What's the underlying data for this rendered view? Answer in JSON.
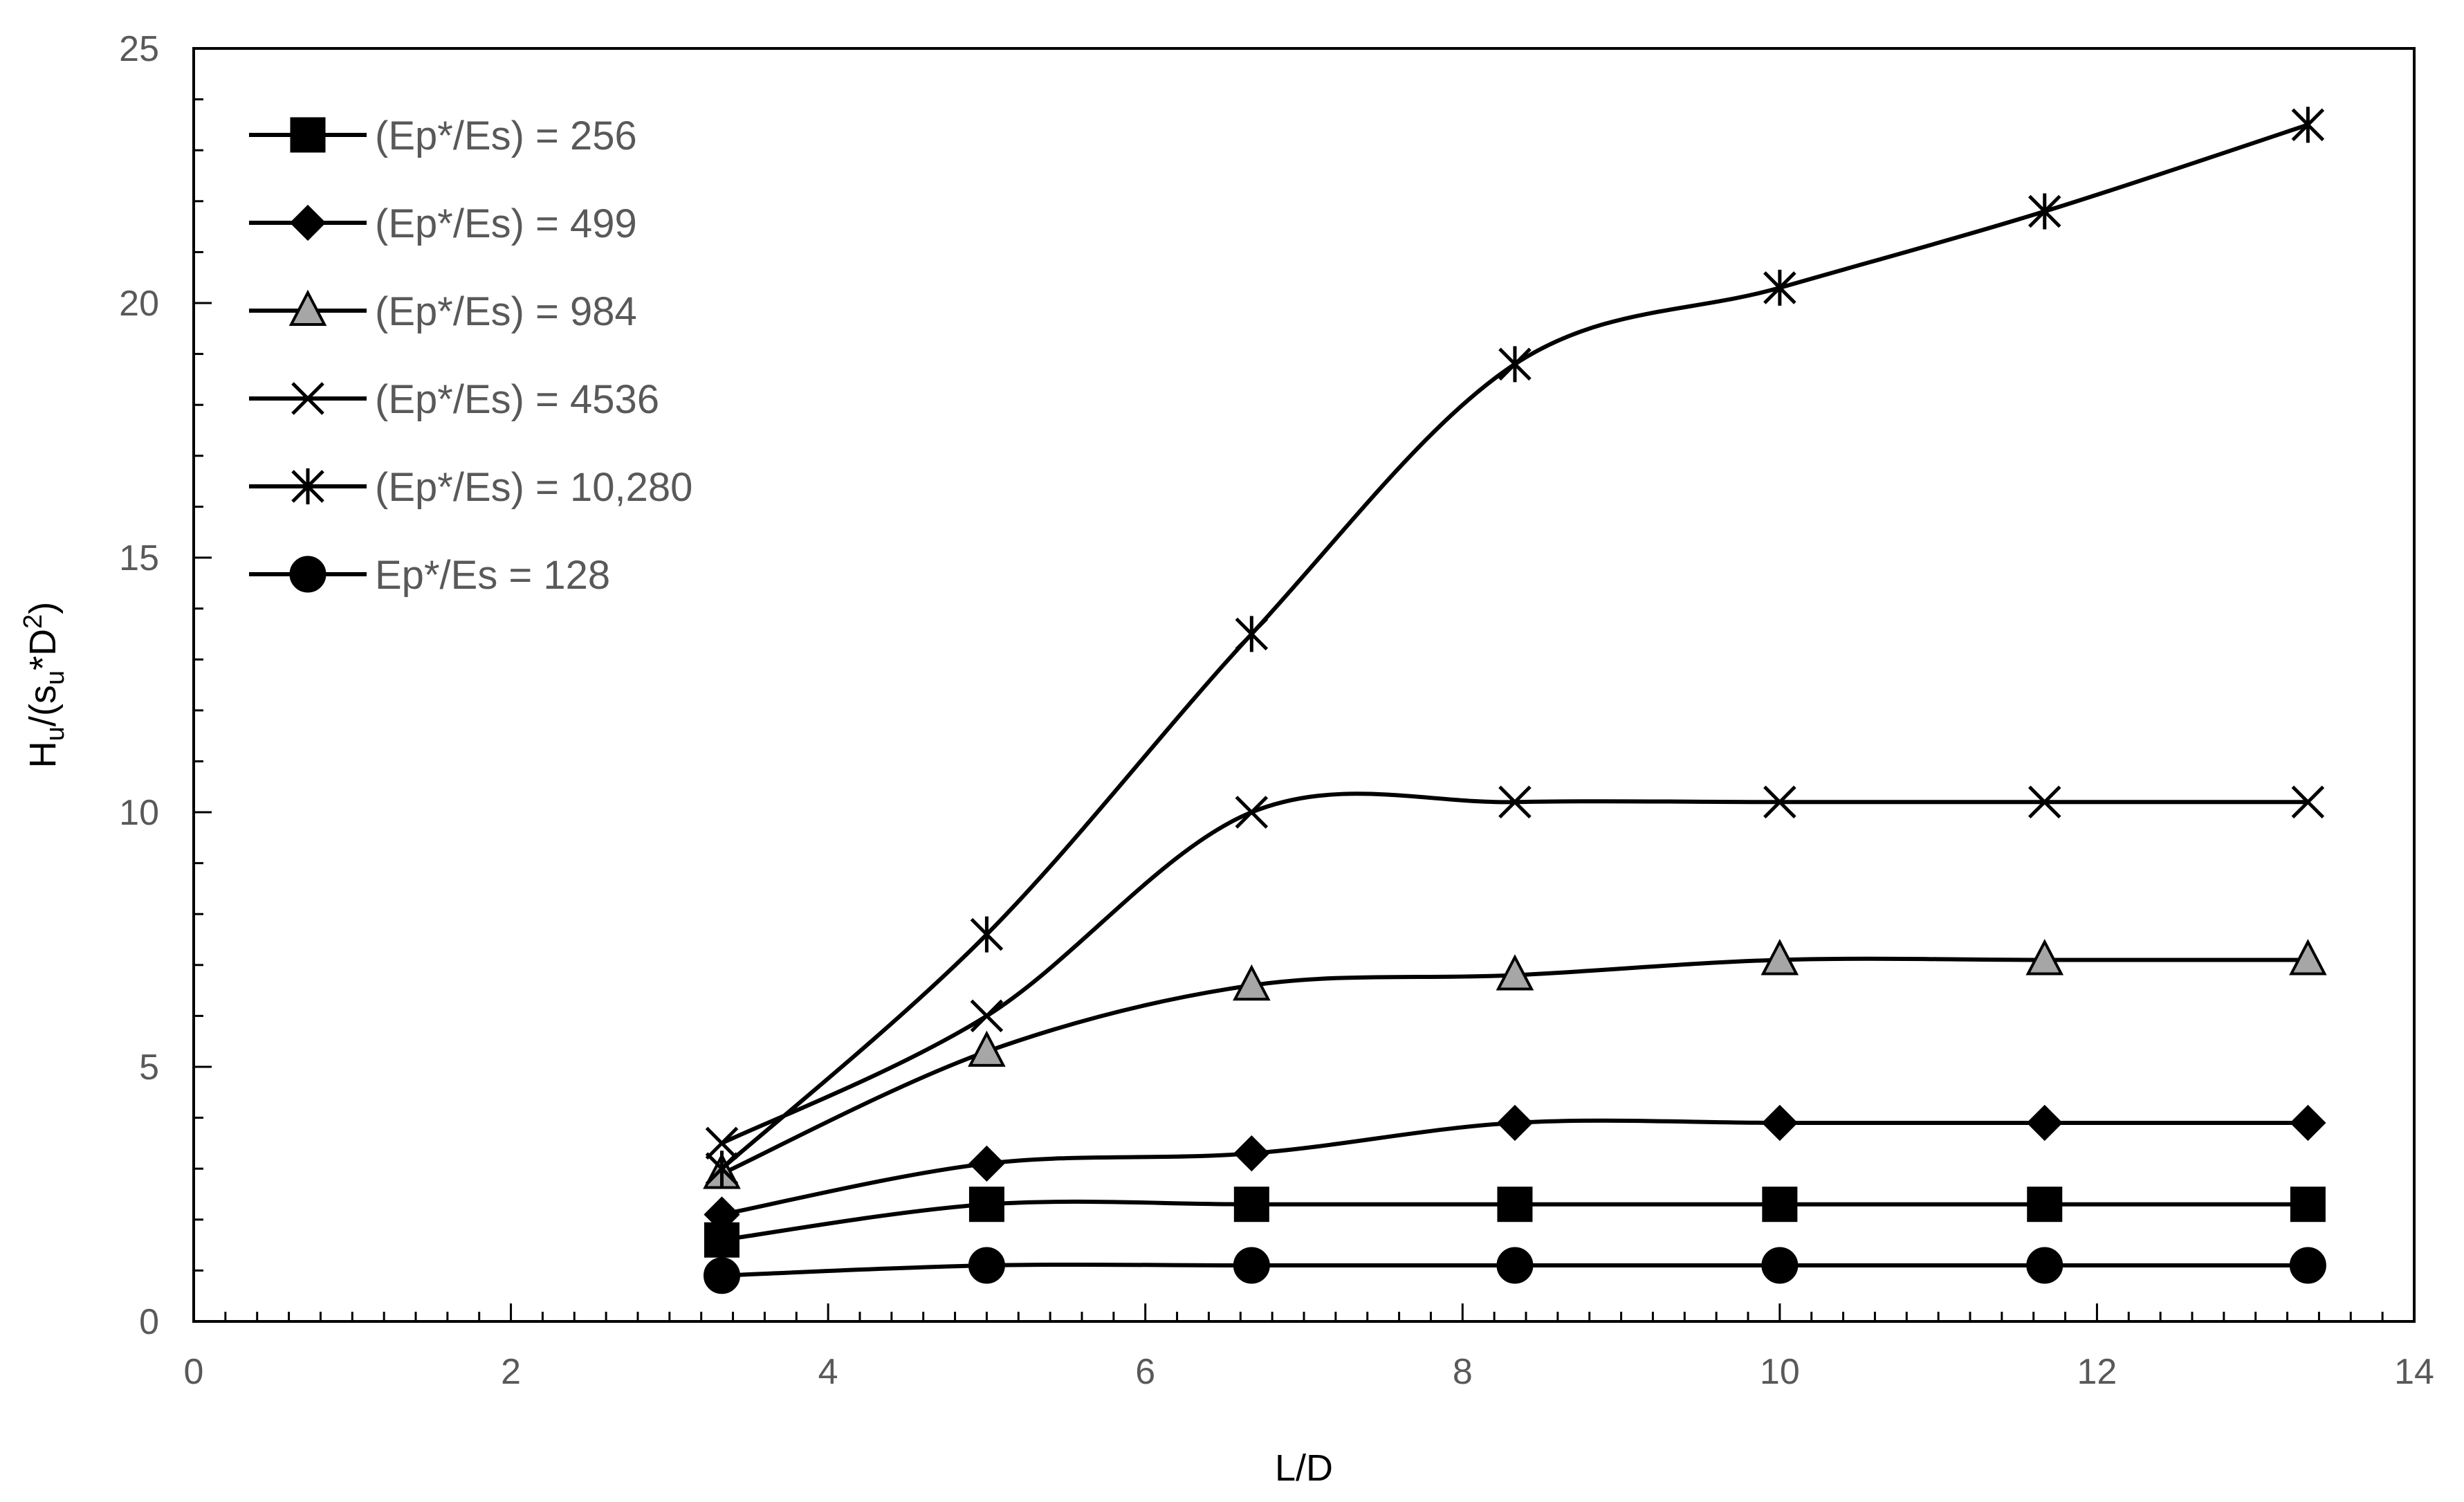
{
  "chart_data": {
    "type": "line",
    "title": "",
    "xlabel": "L/D",
    "ylabel": {
      "H": "H",
      "u1": "u",
      "mid": "/(s",
      "u2": "u",
      "star": "*D",
      "sup": "2",
      "end": ")"
    },
    "xlim": [
      0,
      14
    ],
    "ylim": [
      0,
      25
    ],
    "xticks": [
      "0",
      "2",
      "4",
      "6",
      "8",
      "10",
      "12",
      "14"
    ],
    "yticks": [
      "0",
      "5",
      "10",
      "15",
      "20",
      "25"
    ],
    "grid": false,
    "legend_position": "top-left",
    "x": [
      3.33,
      5.0,
      6.67,
      8.33,
      10.0,
      11.67,
      13.33
    ],
    "series": [
      {
        "name": "(Ep*/Es) = 256",
        "marker": "square",
        "fill": "#000000",
        "values": [
          1.6,
          2.3,
          2.3,
          2.3,
          2.3,
          2.3,
          2.3
        ]
      },
      {
        "name": "(Ep*/Es) = 499",
        "marker": "diamond",
        "fill": "#000000",
        "values": [
          2.1,
          3.1,
          3.3,
          3.9,
          3.9,
          3.9,
          3.9
        ]
      },
      {
        "name": "(Ep*/Es) = 984",
        "marker": "triangle",
        "fill": "#a6a6a6",
        "values": [
          2.9,
          5.3,
          6.6,
          6.8,
          7.1,
          7.1,
          7.1
        ]
      },
      {
        "name": "(Ep*/Es) = 4536",
        "marker": "x",
        "fill": "#000000",
        "values": [
          3.5,
          6.0,
          10.0,
          10.2,
          10.2,
          10.2,
          10.2
        ]
      },
      {
        "name": "(Ep*/Es) = 10,280",
        "marker": "star",
        "fill": "#000000",
        "values": [
          3.0,
          7.6,
          13.5,
          18.8,
          20.3,
          21.8,
          23.5
        ]
      },
      {
        "name": "Ep*/Es = 128",
        "marker": "circle",
        "fill": "#000000",
        "values": [
          0.9,
          1.1,
          1.1,
          1.1,
          1.1,
          1.1,
          1.1
        ]
      }
    ]
  }
}
